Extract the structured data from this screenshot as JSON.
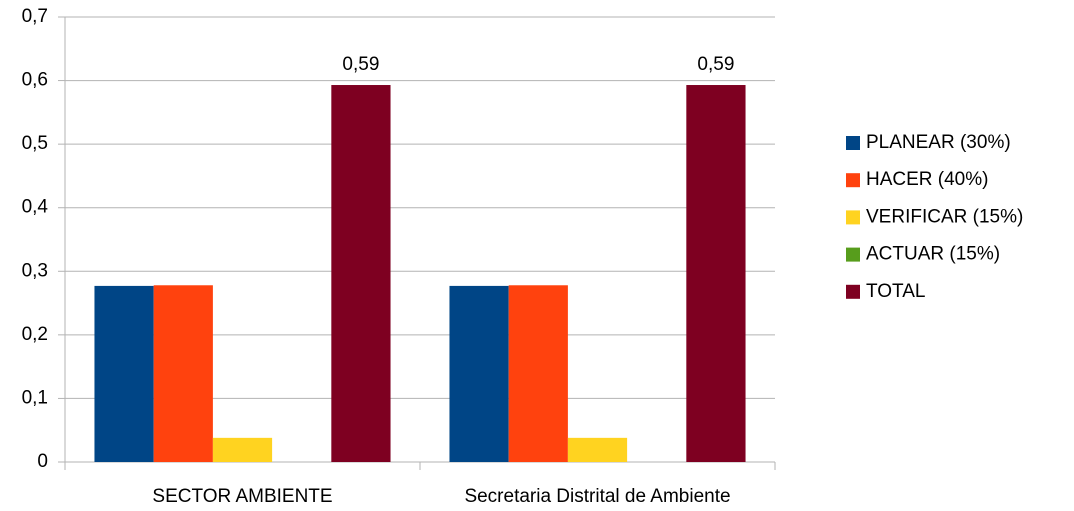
{
  "chart_data": {
    "type": "bar",
    "categories": [
      "SECTOR AMBIENTE",
      "Secretaria Distrital de Ambiente"
    ],
    "series": [
      {
        "name": "PLANEAR (30%)",
        "color": "#004586",
        "values": [
          0.277,
          0.277
        ]
      },
      {
        "name": "HACER (40%)",
        "color": "#ff420e",
        "values": [
          0.278,
          0.278
        ]
      },
      {
        "name": "VERIFICAR (15%)",
        "color": "#ffd320",
        "values": [
          0.038,
          0.038
        ]
      },
      {
        "name": "ACTUAR (15%)",
        "color": "#579d1c",
        "values": [
          0,
          0
        ]
      },
      {
        "name": "TOTAL",
        "color": "#7e0021",
        "values": [
          0.593,
          0.593
        ],
        "value_labels": [
          "0,59",
          "0,59"
        ]
      }
    ],
    "ylim": [
      0,
      0.7
    ],
    "yticks": [
      0,
      {
        "value": 0.1,
        "label": "0,1"
      },
      {
        "value": 0.2,
        "label": "0,2"
      },
      {
        "value": 0.3,
        "label": "0,3"
      },
      {
        "value": 0.4,
        "label": "0,4"
      },
      {
        "value": 0.5,
        "label": "0,5"
      },
      {
        "value": 0.6,
        "label": "0,6"
      },
      {
        "value": 0.7,
        "label": "0,7"
      }
    ],
    "grid": true,
    "legend": "right"
  }
}
